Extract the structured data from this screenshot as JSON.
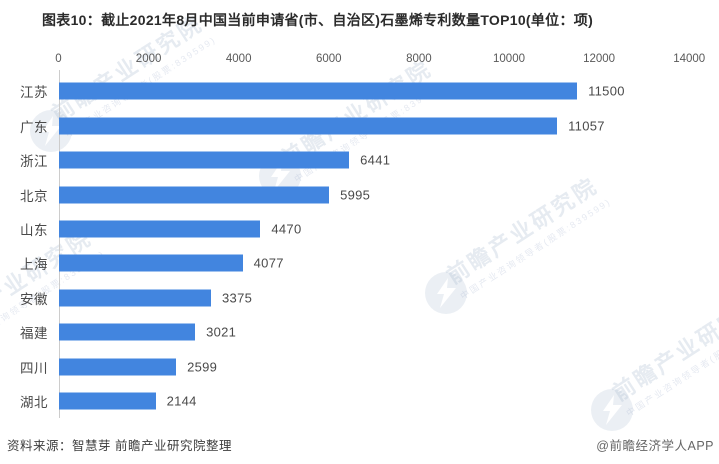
{
  "title": "图表10：截止2021年8月中国当前申请省(市、自治区)石墨烯专利数量TOP10(单位：项)",
  "chart_data": {
    "type": "bar",
    "orientation": "horizontal",
    "title": "图表10：截止2021年8月中国当前申请省(市、自治区)石墨烯专利数量TOP10(单位：项)",
    "categories": [
      "江苏",
      "广东",
      "浙江",
      "北京",
      "山东",
      "上海",
      "安徽",
      "福建",
      "四川",
      "湖北"
    ],
    "values": [
      11500,
      11057,
      6441,
      5995,
      4470,
      4077,
      3375,
      3021,
      2599,
      2144
    ],
    "x_ticks": [
      0,
      2000,
      4000,
      6000,
      8000,
      10000,
      12000,
      14000
    ],
    "xlim": [
      0,
      14000
    ],
    "xlabel": "",
    "ylabel": "",
    "grid": false,
    "legend": false,
    "value_labels": true,
    "ticks_position": "top"
  },
  "colors": {
    "bar": "#4285df",
    "title_text": "#2b2b2b",
    "category_text": "#4a4a4a",
    "value_text": "#4a4a4a",
    "tick_text": "#595959",
    "axis_line": "#cccccc",
    "footer_source_text": "#3d3d3d",
    "footer_credit_text": "#666666",
    "background": "#ffffff"
  },
  "watermark": {
    "main_text": "前瞻产业研究院",
    "sub_text": "中国产业咨询领导者(股票:839599)",
    "logo": "qianzhan-bolt-logo"
  },
  "footer": {
    "source": "资料来源：智慧芽 前瞻产业研究院整理",
    "credit": "@前瞻经济学人APP"
  }
}
